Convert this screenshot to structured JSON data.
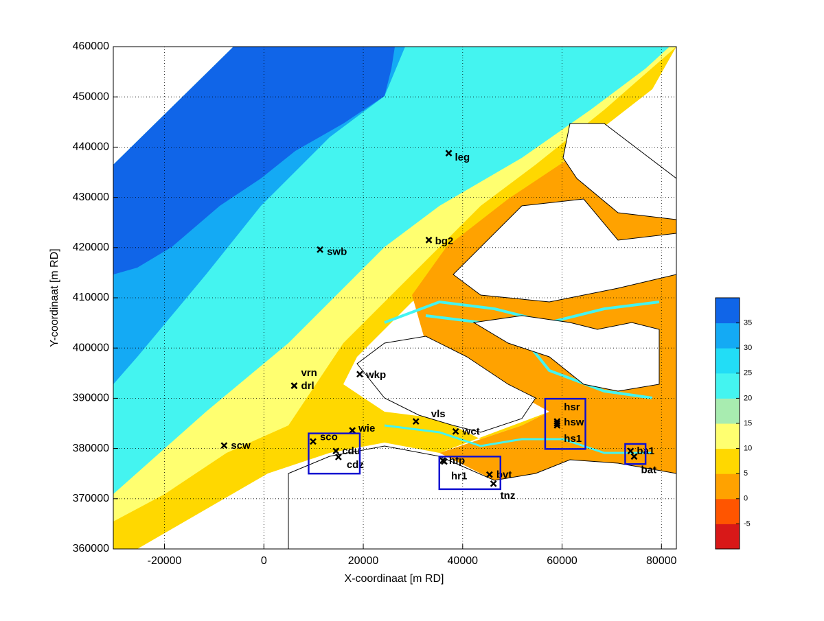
{
  "chart_data": {
    "type": "scatter",
    "xlabel": "X-coordinaat [m RD]",
    "ylabel": "Y-coordinaat [m RD]",
    "xlim": [
      -30300,
      83000
    ],
    "ylim": [
      360000,
      460000
    ],
    "xticks": [
      -20000,
      0,
      20000,
      40000,
      60000,
      80000
    ],
    "yticks": [
      360000,
      370000,
      380000,
      390000,
      400000,
      410000,
      420000,
      430000,
      440000,
      450000,
      460000
    ],
    "grid": true,
    "points": [
      {
        "label": "leg",
        "x": 37200,
        "y": 438800
      },
      {
        "label": "swb",
        "x": 11300,
        "y": 419600
      },
      {
        "label": "bg2",
        "x": 33200,
        "y": 421500
      },
      {
        "label": "wkp",
        "x": 19300,
        "y": 394800
      },
      {
        "label": "vrn",
        "x": 6100,
        "y": 392500
      },
      {
        "label": "drl",
        "x": 6100,
        "y": 392500
      },
      {
        "label": "sco",
        "x": 9900,
        "y": 381400
      },
      {
        "label": "wie",
        "x": 17800,
        "y": 383600
      },
      {
        "label": "scw",
        "x": -8000,
        "y": 380600
      },
      {
        "label": "cdu",
        "x": 14500,
        "y": 379500
      },
      {
        "label": "cdz",
        "x": 15000,
        "y": 378300
      },
      {
        "label": "vls",
        "x": 30600,
        "y": 385400
      },
      {
        "label": "wct",
        "x": 38600,
        "y": 383400
      },
      {
        "label": "hfp",
        "x": 36000,
        "y": 377600
      },
      {
        "label": "hr1",
        "x": 36300,
        "y": 377400
      },
      {
        "label": "bvt",
        "x": 45400,
        "y": 374800
      },
      {
        "label": "tnz",
        "x": 46200,
        "y": 373000
      },
      {
        "label": "hsr",
        "x": 59000,
        "y": 385400
      },
      {
        "label": "hsw",
        "x": 59000,
        "y": 385000
      },
      {
        "label": "hs1",
        "x": 59000,
        "y": 384600
      },
      {
        "label": "ba1",
        "x": 73800,
        "y": 379500
      },
      {
        "label": "bat",
        "x": 74500,
        "y": 378400
      }
    ],
    "boxes": [
      {
        "x": [
          9000,
          19300
        ],
        "y": [
          375000,
          383000
        ]
      },
      {
        "x": [
          35300,
          47600
        ],
        "y": [
          371900,
          378400
        ]
      },
      {
        "x": [
          56600,
          64700
        ],
        "y": [
          379900,
          389900
        ]
      },
      {
        "x": [
          72700,
          76800
        ],
        "y": [
          376900,
          380900
        ]
      }
    ],
    "box_color": "#1010d0",
    "colorbar": {
      "lim": [
        -10,
        40
      ],
      "ticks": [
        -5,
        0,
        5,
        10,
        15,
        20,
        25,
        30,
        35
      ],
      "colors": [
        "#d81818",
        "#ff5500",
        "#ffa200",
        "#ffd800",
        "#ffff70",
        "#a8ecb0",
        "#44f4f0",
        "#22ddf6",
        "#14aaf4",
        "#1065e8"
      ]
    }
  }
}
